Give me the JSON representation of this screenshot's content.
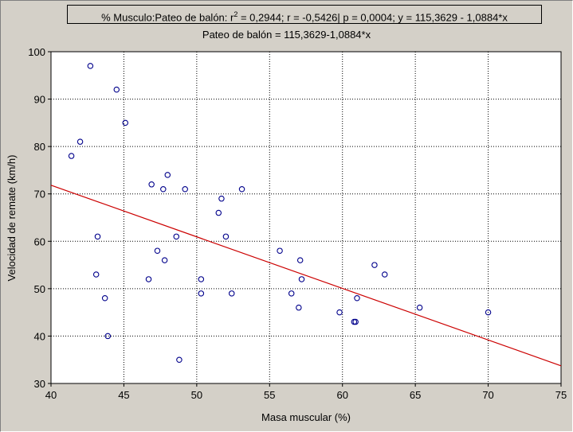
{
  "chart_data": {
    "type": "scatter",
    "title_parts": {
      "prefix": "% Musculo:Pateo de balón:  r",
      "sup": "2",
      "suffix": " = 0,2944;  r = -0,5426| p = 0,0004;  y = 115,3629 - 1,0884*x"
    },
    "subtitle": "Pateo de balón = 115,3629-1,0884*x",
    "xlabel": "Masa muscular (%)",
    "ylabel": "Velocidad de remate (km/h)",
    "xlim": [
      40,
      75
    ],
    "ylim": [
      30,
      100
    ],
    "x_ticks": [
      40,
      45,
      50,
      55,
      60,
      65,
      70,
      75
    ],
    "y_ticks": [
      30,
      40,
      50,
      60,
      70,
      80,
      90,
      100
    ],
    "grid": true,
    "point_color": "#00008b",
    "line_color": "#cc0000",
    "regression": {
      "intercept": 115.3629,
      "slope": -1.0884
    },
    "points": [
      {
        "x": 41.4,
        "y": 78
      },
      {
        "x": 42.0,
        "y": 81
      },
      {
        "x": 42.7,
        "y": 97
      },
      {
        "x": 43.1,
        "y": 53
      },
      {
        "x": 43.2,
        "y": 61
      },
      {
        "x": 43.7,
        "y": 48
      },
      {
        "x": 43.9,
        "y": 40
      },
      {
        "x": 44.5,
        "y": 92
      },
      {
        "x": 45.1,
        "y": 85
      },
      {
        "x": 46.7,
        "y": 52
      },
      {
        "x": 46.9,
        "y": 72
      },
      {
        "x": 47.3,
        "y": 58
      },
      {
        "x": 47.7,
        "y": 71
      },
      {
        "x": 47.8,
        "y": 56
      },
      {
        "x": 48.0,
        "y": 74
      },
      {
        "x": 48.6,
        "y": 61
      },
      {
        "x": 48.8,
        "y": 35
      },
      {
        "x": 49.2,
        "y": 71
      },
      {
        "x": 50.3,
        "y": 52
      },
      {
        "x": 50.3,
        "y": 49
      },
      {
        "x": 51.5,
        "y": 66
      },
      {
        "x": 51.7,
        "y": 69
      },
      {
        "x": 52.0,
        "y": 61
      },
      {
        "x": 52.4,
        "y": 49
      },
      {
        "x": 53.1,
        "y": 71
      },
      {
        "x": 55.7,
        "y": 58
      },
      {
        "x": 56.5,
        "y": 49
      },
      {
        "x": 57.0,
        "y": 46
      },
      {
        "x": 57.1,
        "y": 56
      },
      {
        "x": 57.2,
        "y": 52
      },
      {
        "x": 59.8,
        "y": 45
      },
      {
        "x": 60.8,
        "y": 43
      },
      {
        "x": 60.9,
        "y": 43
      },
      {
        "x": 61.0,
        "y": 48
      },
      {
        "x": 62.2,
        "y": 55
      },
      {
        "x": 62.9,
        "y": 53
      },
      {
        "x": 65.3,
        "y": 46
      },
      {
        "x": 70.0,
        "y": 45
      }
    ]
  }
}
